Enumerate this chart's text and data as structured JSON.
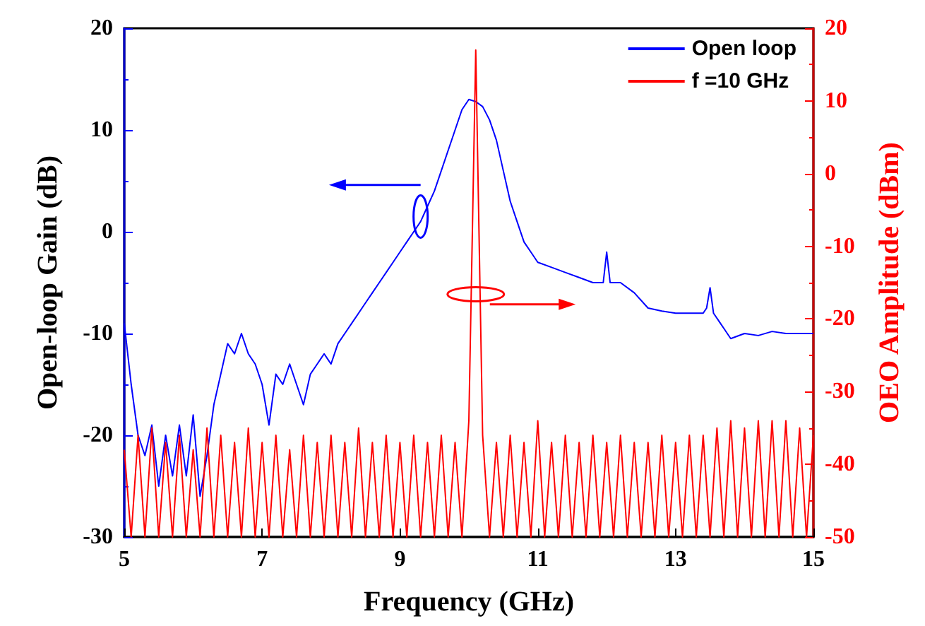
{
  "chart_data": {
    "type": "line",
    "xlabel": "Frequency (GHz)",
    "ylabel": "Open-loop Gain (dB)",
    "y2label": "OEO Amplitude (dBm)",
    "xlim": [
      5,
      15
    ],
    "xticks": [
      5,
      7,
      9,
      11,
      13,
      15
    ],
    "ylim": [
      -30,
      20
    ],
    "yticks": [
      -30,
      -20,
      -10,
      0,
      10,
      20
    ],
    "y2lim": [
      -50,
      20
    ],
    "y2ticks": [
      -50,
      -40,
      -30,
      -20,
      -10,
      0,
      10,
      20
    ],
    "legend": "top right",
    "grid": false,
    "marker": "none",
    "line_style": "solid",
    "series": [
      {
        "name": "Open loop",
        "color": "#0000ff",
        "axis": "y",
        "x": [
          5.0,
          5.05,
          5.1,
          5.2,
          5.3,
          5.4,
          5.5,
          5.6,
          5.7,
          5.8,
          5.9,
          6.0,
          6.1,
          6.2,
          6.3,
          6.4,
          6.5,
          6.6,
          6.7,
          6.8,
          6.9,
          7.0,
          7.1,
          7.2,
          7.3,
          7.4,
          7.5,
          7.6,
          7.7,
          7.8,
          7.9,
          8.0,
          8.1,
          8.2,
          8.3,
          8.4,
          8.5,
          8.6,
          8.7,
          8.8,
          8.9,
          9.0,
          9.1,
          9.2,
          9.3,
          9.4,
          9.5,
          9.6,
          9.7,
          9.8,
          9.9,
          10.0,
          10.1,
          10.2,
          10.3,
          10.4,
          10.5,
          10.6,
          10.7,
          10.8,
          10.9,
          11.0,
          11.2,
          11.4,
          11.6,
          11.8,
          11.95,
          12.0,
          12.05,
          12.2,
          12.4,
          12.6,
          12.8,
          13.0,
          13.2,
          13.4,
          13.45,
          13.5,
          13.55,
          13.7,
          13.8,
          14.0,
          14.2,
          14.4,
          14.6,
          14.8,
          15.0
        ],
        "values": [
          -9,
          -12,
          -15,
          -20,
          -22,
          -19,
          -25,
          -20,
          -24,
          -19,
          -24,
          -18,
          -26,
          -22,
          -17,
          -14,
          -11,
          -12,
          -10,
          -12,
          -13,
          -15,
          -19,
          -14,
          -15,
          -13,
          -15,
          -17,
          -14,
          -13,
          -12,
          -13,
          -11,
          -10,
          -9,
          -8,
          -7,
          -6,
          -5,
          -4,
          -3,
          -2,
          -1,
          0,
          1,
          2.5,
          4,
          6,
          8,
          10,
          12,
          13,
          12.8,
          12.3,
          11,
          9,
          6,
          3,
          1,
          -1,
          -2,
          -3,
          -3.5,
          -4,
          -4.5,
          -5,
          -5,
          -2,
          -5,
          -5,
          -6,
          -7.5,
          -7.8,
          -8,
          -8,
          -8,
          -7.5,
          -5.5,
          -8,
          -9.5,
          -10.5,
          -10,
          -10.2,
          -9.8,
          -10,
          -10,
          -10
        ]
      },
      {
        "name": "f =10 GHz",
        "color": "#ff0000",
        "axis": "y2",
        "x": [
          5.0,
          5.1,
          5.2,
          5.3,
          5.4,
          5.5,
          5.6,
          5.7,
          5.8,
          5.9,
          6.0,
          6.1,
          6.2,
          6.3,
          6.4,
          6.5,
          6.6,
          6.7,
          6.8,
          6.9,
          7.0,
          7.1,
          7.2,
          7.3,
          7.4,
          7.5,
          7.6,
          7.7,
          7.8,
          7.9,
          8.0,
          8.1,
          8.2,
          8.3,
          8.4,
          8.5,
          8.6,
          8.7,
          8.8,
          8.9,
          9.0,
          9.1,
          9.2,
          9.3,
          9.4,
          9.5,
          9.6,
          9.7,
          9.8,
          9.9,
          10.0,
          10.1,
          10.2,
          10.3,
          10.4,
          10.5,
          10.6,
          10.7,
          10.8,
          10.9,
          11.0,
          11.1,
          11.2,
          11.3,
          11.4,
          11.5,
          11.6,
          11.7,
          11.8,
          11.9,
          12.0,
          12.1,
          12.2,
          12.3,
          12.4,
          12.5,
          12.6,
          12.7,
          12.8,
          12.9,
          13.0,
          13.1,
          13.2,
          13.3,
          13.4,
          13.5,
          13.6,
          13.7,
          13.8,
          13.9,
          14.0,
          14.1,
          14.2,
          14.3,
          14.4,
          14.5,
          14.6,
          14.7,
          14.8,
          14.9,
          15.0
        ],
        "values": [
          -38,
          -50,
          -36,
          -50,
          -35,
          -50,
          -37,
          -50,
          -36,
          -50,
          -38,
          -50,
          -35,
          -50,
          -36,
          -50,
          -37,
          -50,
          -35,
          -50,
          -37,
          -50,
          -36,
          -50,
          -38,
          -50,
          -36,
          -50,
          -37,
          -50,
          -36,
          -50,
          -37,
          -50,
          -35,
          -50,
          -37,
          -50,
          -36,
          -50,
          -37,
          -50,
          -36,
          -50,
          -37,
          -50,
          -36,
          -50,
          -37,
          -50,
          -34,
          17,
          -36,
          -50,
          -37,
          -50,
          -36,
          -50,
          -37,
          -50,
          -34,
          -50,
          -37,
          -50,
          -36,
          -50,
          -37,
          -50,
          -36,
          -50,
          -37,
          -50,
          -36,
          -50,
          -37,
          -50,
          -37,
          -50,
          -36,
          -50,
          -37,
          -50,
          -36,
          -50,
          -36,
          -50,
          -35,
          -50,
          -34,
          -50,
          -35,
          -50,
          -34,
          -50,
          -34,
          -50,
          -34,
          -50,
          -35,
          -50,
          -36
        ]
      }
    ]
  }
}
